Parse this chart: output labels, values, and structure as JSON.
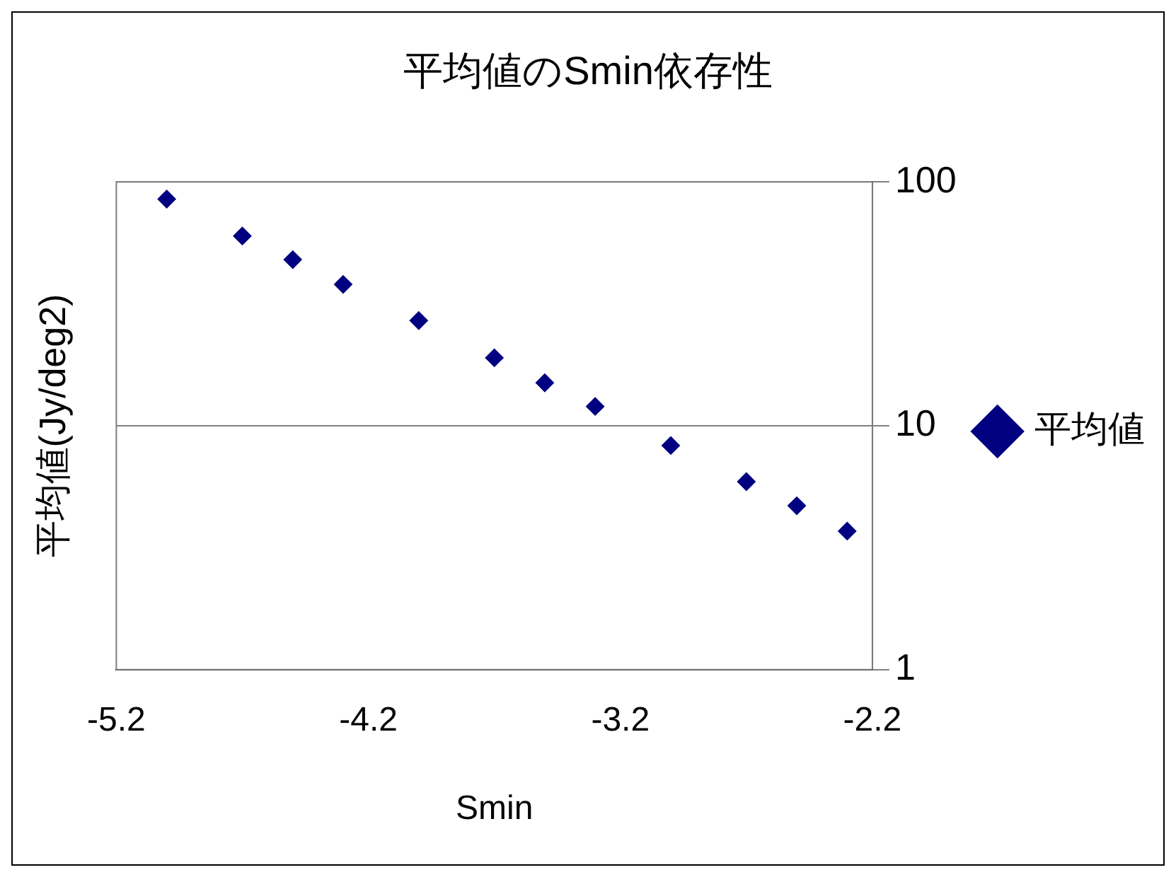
{
  "chart_data": {
    "type": "scatter",
    "title": "平均値のSmin依存性",
    "xlabel": "Smin",
    "ylabel": "平均値(Jy/deg2)",
    "x": [
      -5.0,
      -4.7,
      -4.5,
      -4.3,
      -4.0,
      -3.7,
      -3.5,
      -3.3,
      -3.0,
      -2.7,
      -2.5,
      -2.3
    ],
    "series": [
      {
        "name": "平均値",
        "color": "#000080",
        "values": [
          85,
          60,
          48,
          38,
          27,
          19,
          15,
          12,
          8.3,
          5.9,
          4.7,
          3.7
        ]
      }
    ],
    "xlim": [
      -5.2,
      -2.2
    ],
    "xticks": [
      -5.2,
      -4.2,
      -3.2,
      -2.2
    ],
    "ylim": [
      1,
      100
    ],
    "yticks": [
      1,
      10,
      100
    ],
    "log": "y",
    "grid": "y",
    "legend": "right",
    "marker": "diamond"
  }
}
